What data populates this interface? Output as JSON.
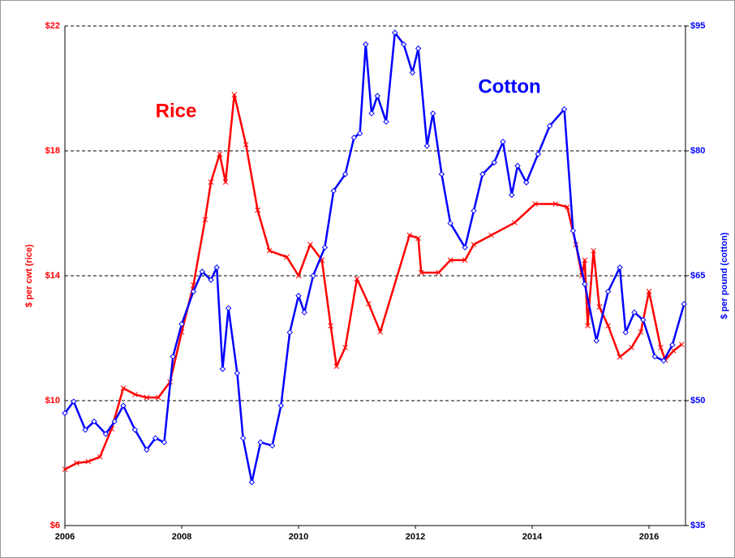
{
  "chart_data": {
    "type": "line",
    "xlim": [
      2006,
      2016.625
    ],
    "xticks": [
      2006,
      2008,
      2010,
      2012,
      2014,
      2016
    ],
    "ylim": [
      6,
      22
    ],
    "yticks": [
      {
        "value": 6,
        "label": "$6"
      },
      {
        "value": 10,
        "label": "$10"
      },
      {
        "value": 14,
        "label": "$14"
      },
      {
        "value": 18,
        "label": "$18"
      },
      {
        "value": 22,
        "label": "$22"
      }
    ],
    "y2lim": [
      35,
      95
    ],
    "y2ticks": [
      {
        "value": 35,
        "label": "$35"
      },
      {
        "value": 50,
        "label": "$50"
      },
      {
        "value": 65,
        "label": "$65"
      },
      {
        "value": 80,
        "label": "$80"
      },
      {
        "value": 95,
        "label": "$95"
      }
    ],
    "ylabel": "$ per cwt (rice)",
    "y2label": "$ per pound (cotton)",
    "grid": true,
    "series": [
      {
        "name": "Rice",
        "color": "#ff0000",
        "marker": "x",
        "x": [
          2006.0,
          2006.2,
          2006.4,
          2006.6,
          2006.8,
          2007.0,
          2007.2,
          2007.4,
          2007.6,
          2007.8,
          2008.0,
          2008.2,
          2008.4,
          2008.5,
          2008.65,
          2008.75,
          2008.9,
          2009.1,
          2009.3,
          2009.5,
          2009.8,
          2010.0,
          2010.2,
          2010.4,
          2010.55,
          2010.65,
          2010.8,
          2011.0,
          2011.2,
          2011.4,
          2011.9,
          2012.05,
          2012.1,
          2012.4,
          2012.6,
          2012.85,
          2013.0,
          2013.3,
          2013.7,
          2014.05,
          2014.4,
          2014.6,
          2014.75,
          2014.85,
          2014.9,
          2014.95,
          2015.05,
          2015.15,
          2015.3,
          2015.5,
          2015.7,
          2015.86,
          2016.0,
          2016.2,
          2016.28,
          2016.42,
          2016.56
        ],
        "values": [
          7.8,
          8.0,
          8.05,
          8.2,
          9.1,
          10.4,
          10.2,
          10.1,
          10.1,
          10.6,
          12.2,
          13.7,
          15.8,
          17.0,
          17.9,
          17.0,
          19.8,
          18.2,
          16.1,
          14.8,
          14.6,
          14.0,
          15.0,
          14.5,
          12.4,
          11.1,
          11.7,
          13.9,
          13.1,
          12.2,
          15.3,
          15.2,
          14.1,
          14.1,
          14.5,
          14.5,
          15.0,
          15.3,
          15.7,
          16.3,
          16.3,
          16.2,
          15.0,
          14.0,
          14.5,
          12.4,
          14.8,
          13.0,
          12.4,
          11.4,
          11.7,
          12.2,
          13.5,
          11.7,
          11.3,
          11.6,
          11.8
        ]
      },
      {
        "name": "Cotton",
        "color": "#0000ff",
        "marker": "diamond",
        "axis": "y2",
        "x": [
          2006.0,
          2006.15,
          2006.35,
          2006.5,
          2006.7,
          2006.85,
          2007.0,
          2007.2,
          2007.4,
          2007.55,
          2007.7,
          2007.85,
          2008.0,
          2008.2,
          2008.35,
          2008.5,
          2008.6,
          2008.7,
          2008.8,
          2008.95,
          2009.05,
          2009.2,
          2009.35,
          2009.55,
          2009.7,
          2009.85,
          2010.0,
          2010.1,
          2010.25,
          2010.45,
          2010.6,
          2010.8,
          2010.95,
          2011.05,
          2011.15,
          2011.25,
          2011.35,
          2011.5,
          2011.65,
          2011.8,
          2011.95,
          2012.05,
          2012.2,
          2012.3,
          2012.45,
          2012.6,
          2012.85,
          2013.0,
          2013.15,
          2013.35,
          2013.5,
          2013.65,
          2013.75,
          2013.9,
          2014.1,
          2014.3,
          2014.55,
          2014.7,
          2014.9,
          2015.1,
          2015.3,
          2015.5,
          2015.6,
          2015.75,
          2015.9,
          2016.1,
          2016.25,
          2016.4,
          2016.6
        ],
        "values": [
          48.5,
          49.9,
          46.5,
          47.5,
          46.0,
          47.5,
          49.4,
          46.5,
          44.1,
          45.5,
          45.0,
          55.3,
          59.2,
          63.1,
          65.5,
          64.5,
          66.0,
          53.8,
          61.1,
          53.3,
          45.5,
          40.2,
          45.0,
          44.6,
          49.4,
          58.2,
          62.6,
          60.6,
          65.0,
          68.4,
          75.2,
          77.2,
          81.6,
          82.1,
          92.8,
          84.5,
          86.6,
          83.5,
          94.2,
          92.8,
          89.4,
          92.3,
          80.6,
          84.5,
          77.2,
          71.3,
          68.4,
          72.8,
          77.2,
          78.6,
          81.1,
          74.7,
          78.2,
          76.2,
          79.6,
          83.0,
          85.0,
          70.4,
          64.0,
          57.2,
          63.1,
          66.0,
          58.2,
          60.6,
          59.7,
          55.3,
          54.8,
          56.7,
          61.6
        ]
      }
    ]
  }
}
